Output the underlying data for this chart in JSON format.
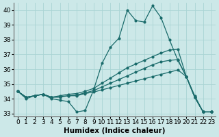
{
  "title": "",
  "xlabel": "Humidex (Indice chaleur)",
  "ylabel": "",
  "xlim": [
    -0.5,
    23.5
  ],
  "ylim": [
    32.8,
    40.5
  ],
  "yticks": [
    33,
    34,
    35,
    36,
    37,
    38,
    39,
    40
  ],
  "xticks": [
    0,
    1,
    2,
    3,
    4,
    5,
    6,
    7,
    8,
    9,
    10,
    11,
    12,
    13,
    14,
    15,
    16,
    17,
    18,
    19,
    20,
    21,
    22,
    23
  ],
  "background_color": "#cce8e8",
  "grid_color": "#aad4d4",
  "line_color": "#1a6b6b",
  "lines": [
    {
      "x": [
        0,
        1,
        2,
        3,
        4,
        5,
        6,
        7,
        8,
        9,
        10,
        11,
        12,
        13,
        14,
        15,
        16,
        17,
        18,
        19,
        20,
        21,
        22,
        23
      ],
      "y": [
        34.5,
        34.0,
        34.2,
        34.3,
        34.0,
        33.9,
        33.8,
        33.1,
        33.2,
        34.6,
        36.4,
        37.5,
        38.1,
        40.0,
        39.3,
        39.2,
        40.3,
        39.5,
        38.0,
        36.6,
        35.5,
        34.2,
        33.1,
        33.1
      ]
    },
    {
      "x": [
        0,
        1,
        2,
        3,
        4,
        5,
        6,
        7,
        8,
        9,
        10,
        11,
        12,
        13,
        14,
        15,
        16,
        17,
        18,
        19,
        20,
        21,
        22,
        23
      ],
      "y": [
        34.5,
        34.1,
        34.2,
        34.3,
        34.1,
        34.1,
        34.2,
        34.2,
        34.35,
        34.45,
        34.6,
        34.75,
        34.9,
        35.05,
        35.2,
        35.35,
        35.5,
        35.65,
        35.8,
        35.95,
        35.5,
        34.1,
        33.1,
        33.1
      ]
    },
    {
      "x": [
        0,
        1,
        2,
        3,
        4,
        5,
        6,
        7,
        8,
        9,
        10,
        11,
        12,
        13,
        14,
        15,
        16,
        17,
        18,
        19,
        20,
        21,
        22,
        23
      ],
      "y": [
        34.5,
        34.1,
        34.2,
        34.3,
        34.1,
        34.15,
        34.2,
        34.25,
        34.4,
        34.55,
        34.8,
        35.05,
        35.3,
        35.55,
        35.8,
        36.05,
        36.3,
        36.5,
        36.6,
        36.65,
        35.5,
        34.1,
        33.1,
        33.1
      ]
    },
    {
      "x": [
        0,
        1,
        2,
        3,
        4,
        5,
        6,
        7,
        8,
        9,
        10,
        11,
        12,
        13,
        14,
        15,
        16,
        17,
        18,
        19,
        20,
        21,
        22,
        23
      ],
      "y": [
        34.5,
        34.1,
        34.2,
        34.3,
        34.1,
        34.2,
        34.3,
        34.35,
        34.5,
        34.7,
        35.05,
        35.4,
        35.75,
        36.1,
        36.35,
        36.6,
        36.85,
        37.1,
        37.3,
        37.35,
        35.5,
        34.1,
        33.1,
        33.1
      ]
    }
  ],
  "font_size": 6.5,
  "marker_size": 2.0,
  "line_width": 0.9
}
